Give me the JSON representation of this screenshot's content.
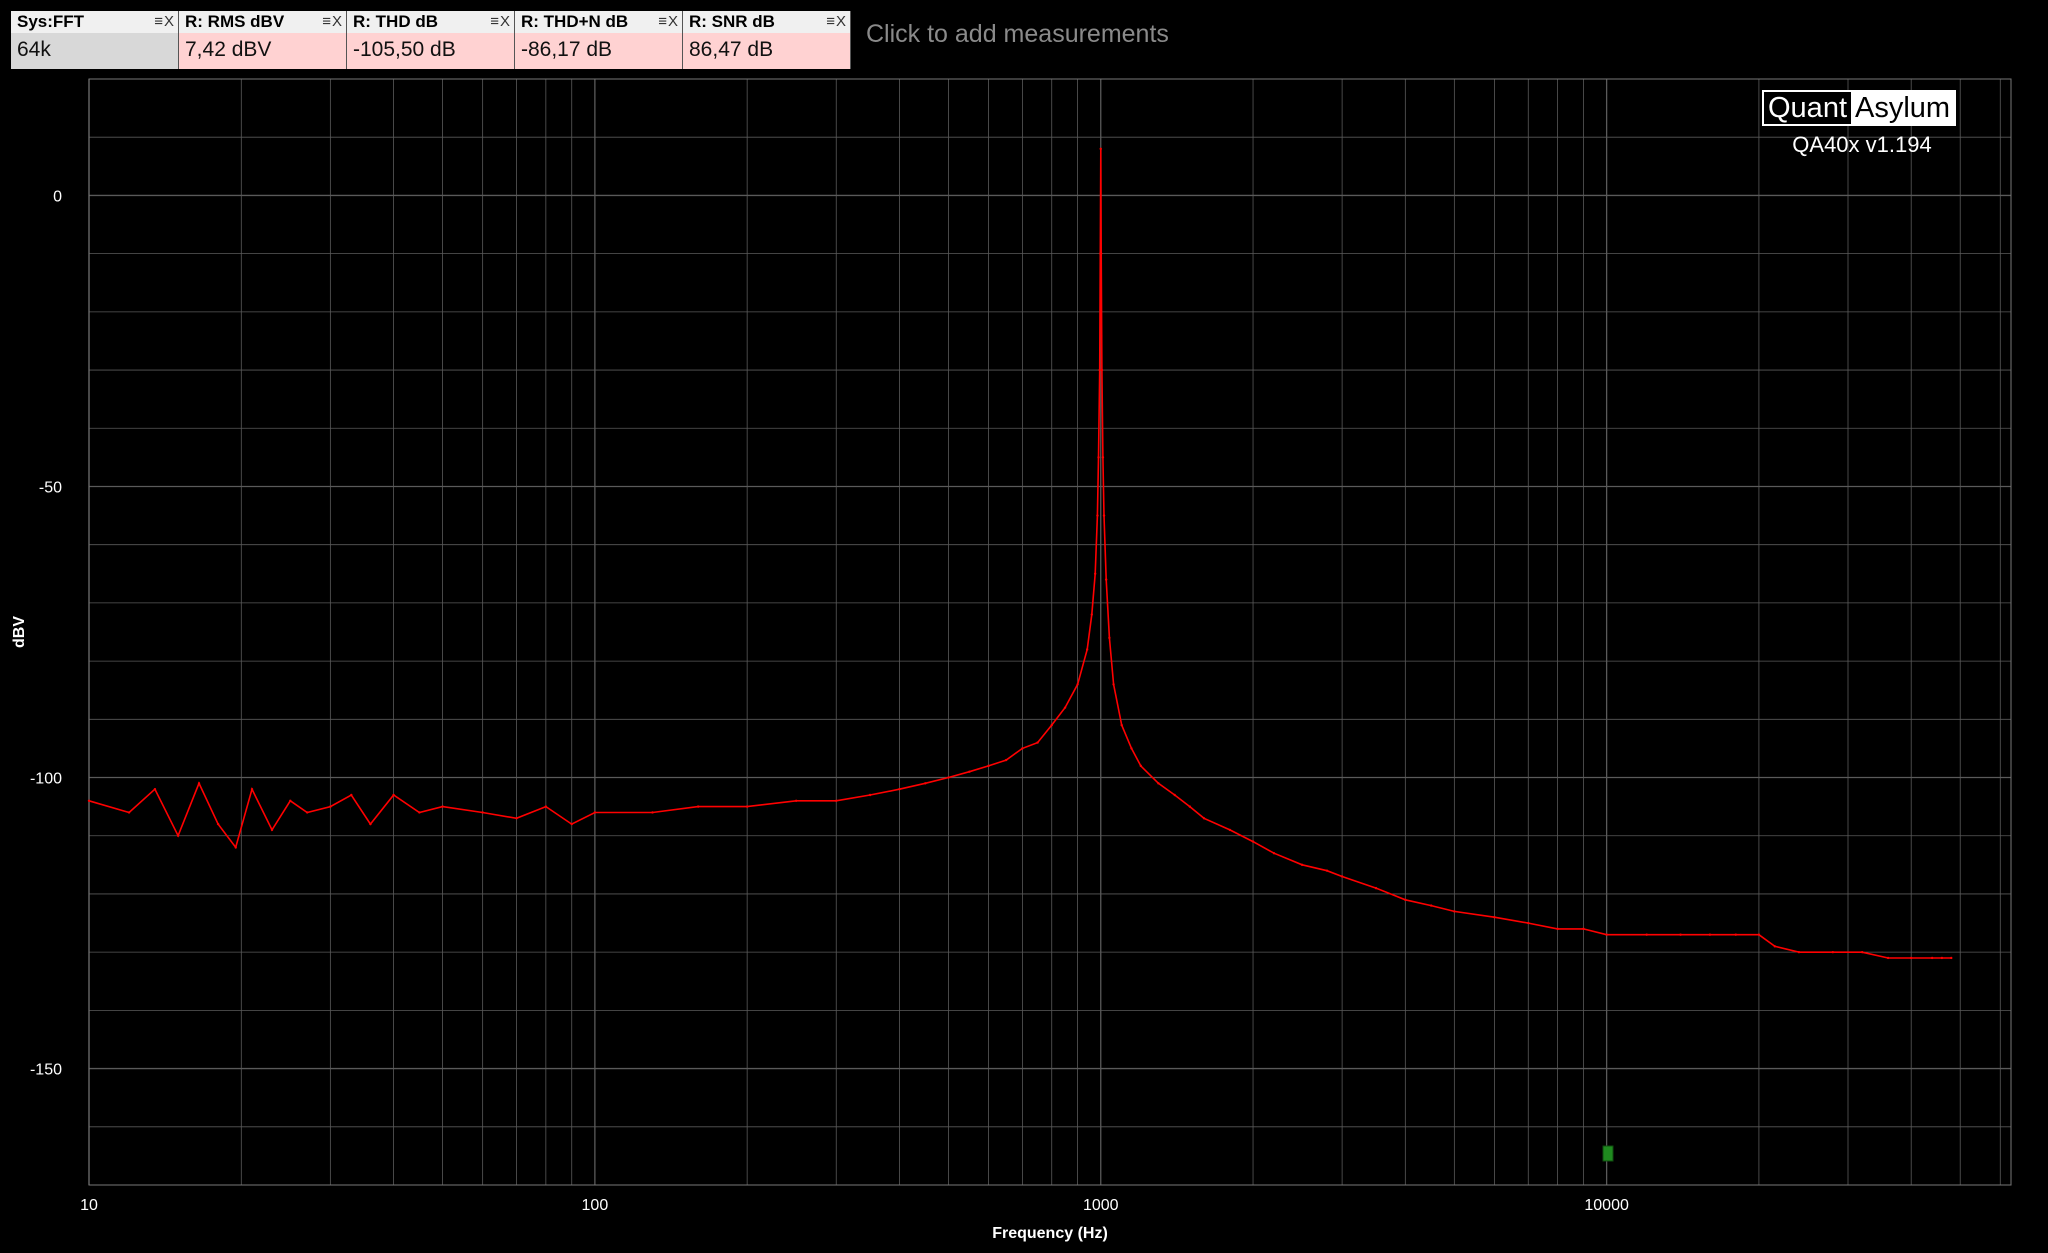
{
  "measurements": [
    {
      "label": "Sys:FFT",
      "value": "64k",
      "kind": "sys",
      "controls": "≡X"
    },
    {
      "label": "R: RMS dBV",
      "value": "7,42 dBV",
      "kind": "res",
      "controls": "≡X"
    },
    {
      "label": "R: THD dB",
      "value": "-105,50 dB",
      "kind": "res",
      "controls": "≡X"
    },
    {
      "label": "R: THD+N dB",
      "value": "-86,17 dB",
      "kind": "res",
      "controls": "≡X"
    },
    {
      "label": "R: SNR dB",
      "value": "86,47 dB",
      "kind": "res",
      "controls": "≡X"
    }
  ],
  "add_measurements": "Click to add measurements",
  "logo": {
    "part1": "Quant",
    "part2": "Asylum",
    "version": "QA40x v1.194"
  },
  "colors": {
    "background": "#000000",
    "grid": "#5a5a5a",
    "trace": "#ff0000",
    "marker": "#1f8a1f"
  },
  "chart_data": {
    "type": "line",
    "title": "",
    "xlabel": "Frequency (Hz)",
    "ylabel": "dBV",
    "x_scale": "log",
    "xlim": [
      10,
      63000
    ],
    "ylim": [
      -170,
      20
    ],
    "x_ticks": [
      {
        "value": 10,
        "label": "10"
      },
      {
        "value": 100,
        "label": "100"
      },
      {
        "value": 1000,
        "label": "1000"
      },
      {
        "value": 10000,
        "label": "10000"
      }
    ],
    "y_ticks": [
      {
        "value": 0,
        "label": "0"
      },
      {
        "value": -50,
        "label": "-50"
      },
      {
        "value": -100,
        "label": "-100"
      },
      {
        "value": -150,
        "label": "-150"
      }
    ],
    "y_grid_step": 10,
    "grid": true,
    "series": [
      {
        "x": [
          10,
          12,
          13.5,
          15,
          16.5,
          18,
          19.5,
          21,
          23,
          25,
          27,
          30,
          33,
          36,
          40,
          45,
          50,
          60,
          70,
          80,
          90,
          100,
          130,
          160,
          200,
          250,
          300,
          350,
          400,
          450,
          500,
          550,
          600,
          650,
          700,
          750,
          800,
          850,
          900,
          940,
          960,
          975,
          985,
          990,
          995,
          998,
          1000,
          1002,
          1005,
          1010,
          1015,
          1025,
          1040,
          1060,
          1100,
          1150,
          1200,
          1300,
          1400,
          1500,
          1600,
          1800,
          2000,
          2200,
          2500,
          2800,
          3000,
          3500,
          4000,
          4500,
          5000,
          6000,
          7000,
          8000,
          9000,
          10000,
          12000,
          14000,
          16000,
          18000,
          20000,
          21500,
          24000,
          28000,
          32000,
          36000,
          40000,
          44000,
          46000,
          48000
        ],
        "y": [
          -104,
          -106,
          -102,
          -110,
          -101,
          -108,
          -112,
          -102,
          -109,
          -104,
          -106,
          -105,
          -103,
          -108,
          -103,
          -106,
          -105,
          -106,
          -107,
          -105,
          -108,
          -106,
          -106,
          -105,
          -105,
          -104,
          -104,
          -103,
          -102,
          -101,
          -100,
          -99,
          -98,
          -97,
          -95,
          -94,
          -91,
          -88,
          -84,
          -78,
          -72,
          -65,
          -55,
          -45,
          -30,
          -10,
          8,
          -10,
          -30,
          -45,
          -55,
          -66,
          -76,
          -84,
          -91,
          -95,
          -98,
          -101,
          -103,
          -105,
          -107,
          -109,
          -111,
          -113,
          -115,
          -116,
          -117,
          -119,
          -121,
          -122,
          -123,
          -124,
          -125,
          -126,
          -126,
          -127,
          -127,
          -127,
          -127,
          -127,
          -127,
          -129,
          -130,
          -130,
          -130,
          -131,
          -131,
          -131,
          -131,
          -131
        ]
      }
    ]
  }
}
